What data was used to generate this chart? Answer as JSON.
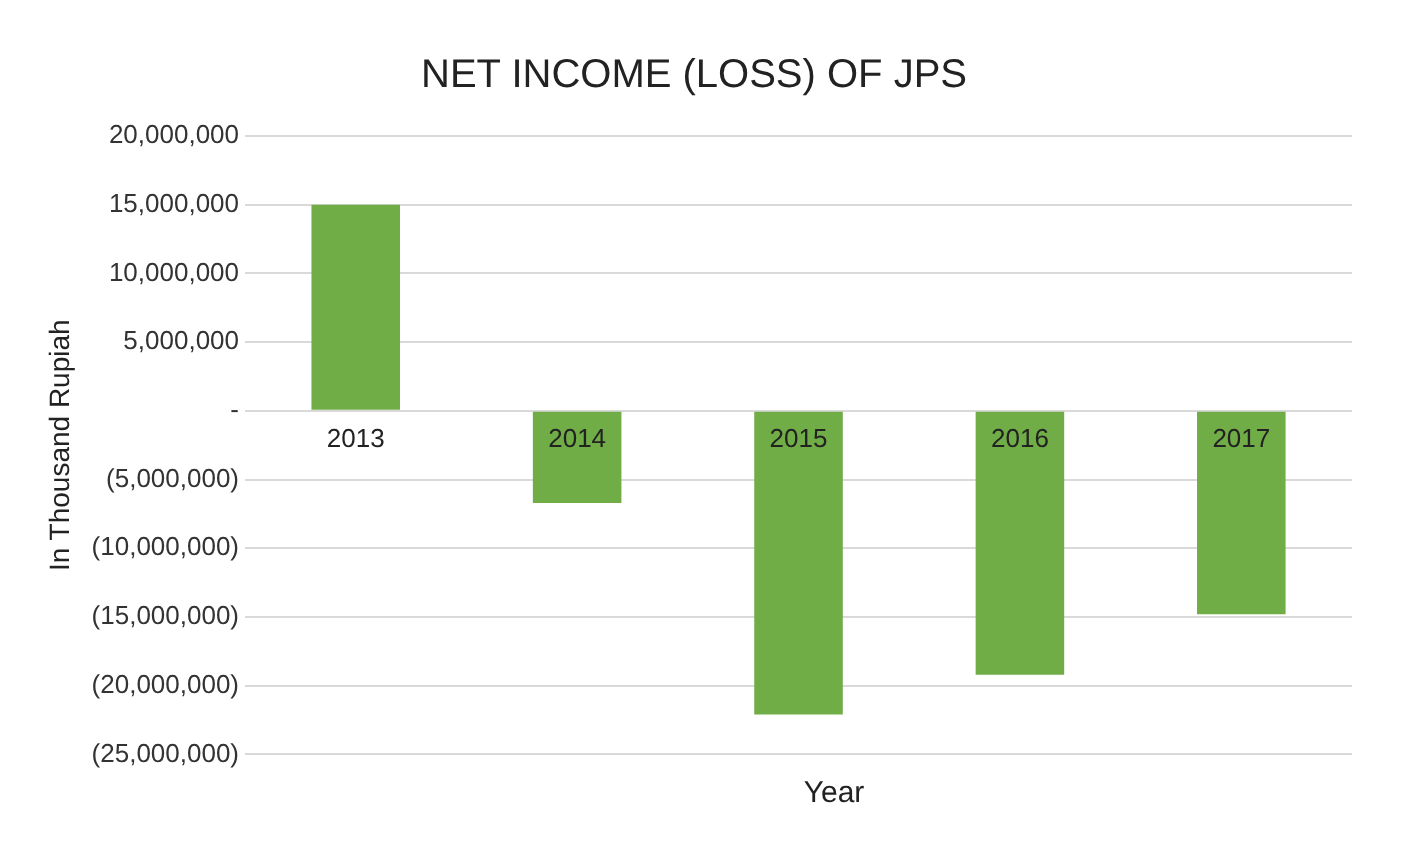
{
  "chart_data": {
    "type": "bar",
    "title": "NET INCOME (LOSS) OF JPS",
    "xlabel": "Year",
    "ylabel": "In Thousand Rupiah",
    "categories": [
      "2013",
      "2014",
      "2015",
      "2016",
      "2017"
    ],
    "values": [
      15000000,
      -6700000,
      -22100000,
      -19200000,
      -14800000
    ],
    "color": "#70ad47",
    "ylim": [
      -25000000,
      20000000
    ],
    "yticks": [
      {
        "value": -25000000,
        "label": "(25,000,000)"
      },
      {
        "value": -20000000,
        "label": "(20,000,000)"
      },
      {
        "value": -15000000,
        "label": "(15,000,000)"
      },
      {
        "value": -10000000,
        "label": "(10,000,000)"
      },
      {
        "value": -5000000,
        "label": "(5,000,000)"
      },
      {
        "value": 0,
        "label": "-"
      },
      {
        "value": 5000000,
        "label": "5,000,000"
      },
      {
        "value": 10000000,
        "label": "10,000,000"
      },
      {
        "value": 15000000,
        "label": "15,000,000"
      },
      {
        "value": 20000000,
        "label": "20,000,000"
      }
    ],
    "grid": "y",
    "legend": false
  }
}
